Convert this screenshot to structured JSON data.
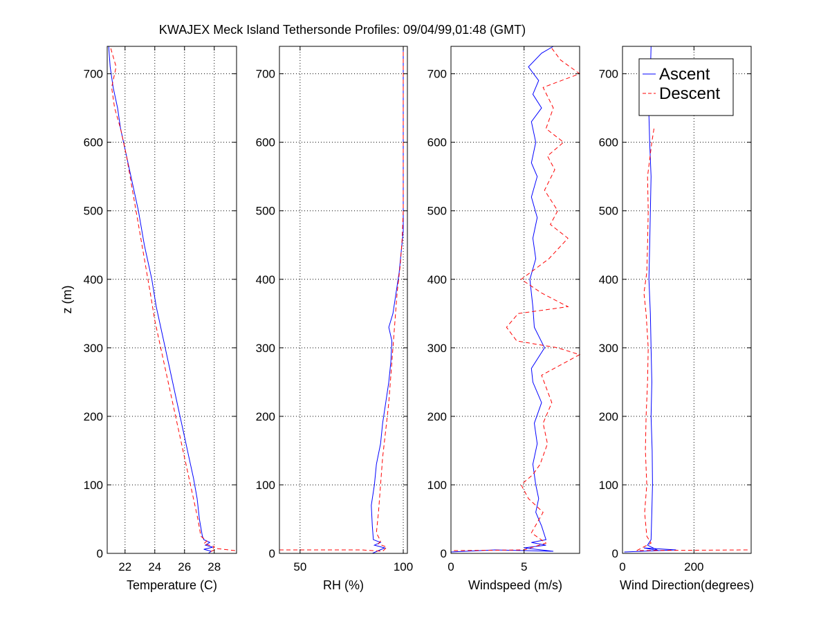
{
  "chart_data": {
    "type": "line",
    "title": "KWAJEX Meck Island Tethersonde Profiles: 09/04/99,01:48 (GMT)",
    "ylabel": "z (m)",
    "ylim": [
      0,
      740
    ],
    "yticks": [
      0,
      100,
      200,
      300,
      400,
      500,
      600,
      700
    ],
    "grid": true,
    "legend": {
      "placement": "top-right of last panel",
      "entries": [
        "Ascent",
        "Descent"
      ]
    },
    "colors": {
      "ascent": "#0000ff",
      "descent": "#ff0000"
    },
    "panels": [
      {
        "xlabel": "Temperature (C)",
        "xlim": [
          20.8,
          29.5
        ],
        "xticks": [
          22,
          24,
          26,
          28
        ],
        "series": [
          {
            "name": "Ascent",
            "style": "solid",
            "points": [
              [
                27.6,
                0
              ],
              [
                27.8,
                3
              ],
              [
                27.3,
                6
              ],
              [
                27.9,
                9
              ],
              [
                27.4,
                12
              ],
              [
                27.7,
                16
              ],
              [
                27.3,
                20
              ],
              [
                27.2,
                25
              ],
              [
                27.0,
                50
              ],
              [
                26.85,
                80
              ],
              [
                26.6,
                110
              ],
              [
                26.3,
                140
              ],
              [
                26.0,
                170
              ],
              [
                25.5,
                220
              ],
              [
                25.0,
                270
              ],
              [
                24.6,
                310
              ],
              [
                24.1,
                360
              ],
              [
                23.8,
                400
              ],
              [
                23.3,
                450
              ],
              [
                22.9,
                500
              ],
              [
                22.5,
                540
              ],
              [
                22.1,
                580
              ],
              [
                21.7,
                620
              ],
              [
                21.5,
                650
              ],
              [
                21.2,
                680
              ],
              [
                21.0,
                710
              ],
              [
                20.9,
                740
              ]
            ]
          },
          {
            "name": "Descent",
            "style": "dashed",
            "points": [
              [
                29.4,
                4
              ],
              [
                28.2,
                7
              ],
              [
                27.8,
                3
              ],
              [
                28.0,
                10
              ],
              [
                27.3,
                14
              ],
              [
                27.5,
                18
              ],
              [
                27.1,
                25
              ],
              [
                26.9,
                50
              ],
              [
                26.6,
                80
              ],
              [
                26.3,
                110
              ],
              [
                25.9,
                150
              ],
              [
                25.5,
                190
              ],
              [
                25.0,
                240
              ],
              [
                24.5,
                290
              ],
              [
                24.0,
                340
              ],
              [
                23.7,
                380
              ],
              [
                23.3,
                430
              ],
              [
                22.9,
                480
              ],
              [
                22.5,
                530
              ],
              [
                22.1,
                580
              ],
              [
                21.7,
                620
              ],
              [
                21.3,
                650
              ],
              [
                21.1,
                680
              ],
              [
                21.4,
                710
              ],
              [
                21.0,
                740
              ]
            ]
          }
        ]
      },
      {
        "xlabel": "RH (%)",
        "xlim": [
          40,
          102
        ],
        "xticks": [
          50,
          100
        ],
        "tick_labels": [
          "50",
          "100"
        ],
        "series": [
          {
            "name": "Ascent",
            "style": "solid",
            "points": [
              [
                85,
                0
              ],
              [
                88,
                4
              ],
              [
                91,
                8
              ],
              [
                86,
                12
              ],
              [
                89,
                16
              ],
              [
                85.5,
                20
              ],
              [
                85,
                40
              ],
              [
                84.5,
                70
              ],
              [
                86,
                100
              ],
              [
                87,
                130
              ],
              [
                89,
                160
              ],
              [
                90,
                190
              ],
              [
                91.5,
                220
              ],
              [
                93,
                250
              ],
              [
                94,
                280
              ],
              [
                94.5,
                310
              ],
              [
                93,
                330
              ],
              [
                95,
                350
              ],
              [
                96.5,
                380
              ],
              [
                98,
                410
              ],
              [
                99,
                440
              ],
              [
                100,
                470
              ],
              [
                100,
                740
              ]
            ]
          },
          {
            "name": "Descent",
            "style": "dashed",
            "points": [
              [
                40,
                5
              ],
              [
                80,
                5
              ],
              [
                90,
                3
              ],
              [
                92,
                9
              ],
              [
                88,
                14
              ],
              [
                89,
                18
              ],
              [
                87,
                30
              ],
              [
                88,
                60
              ],
              [
                89,
                100
              ],
              [
                90,
                140
              ],
              [
                91.5,
                180
              ],
              [
                93,
                220
              ],
              [
                94,
                260
              ],
              [
                95,
                300
              ],
              [
                96,
                340
              ],
              [
                97,
                380
              ],
              [
                98.5,
                420
              ],
              [
                99.5,
                460
              ],
              [
                100,
                500
              ],
              [
                100,
                740
              ]
            ]
          }
        ]
      },
      {
        "xlabel": "Windspeed (m/s)",
        "xlim": [
          0,
          8.8
        ],
        "xticks": [
          0,
          5
        ],
        "series": [
          {
            "name": "Ascent",
            "style": "solid",
            "points": [
              [
                0,
                2
              ],
              [
                3,
                5
              ],
              [
                7,
                3
              ],
              [
                5,
                8
              ],
              [
                6.5,
                12
              ],
              [
                5.5,
                16
              ],
              [
                6.5,
                20
              ],
              [
                6.2,
                40
              ],
              [
                5.8,
                60
              ],
              [
                6.0,
                80
              ],
              [
                5.8,
                100
              ],
              [
                5.6,
                130
              ],
              [
                5.9,
                160
              ],
              [
                5.7,
                190
              ],
              [
                6.2,
                220
              ],
              [
                5.6,
                250
              ],
              [
                5.5,
                270
              ],
              [
                6.4,
                300
              ],
              [
                5.7,
                330
              ],
              [
                5.6,
                360
              ],
              [
                5.4,
                400
              ],
              [
                5.8,
                430
              ],
              [
                5.6,
                460
              ],
              [
                5.9,
                490
              ],
              [
                5.5,
                520
              ],
              [
                5.9,
                550
              ],
              [
                5.5,
                570
              ],
              [
                5.8,
                600
              ],
              [
                5.5,
                630
              ],
              [
                6.2,
                650
              ],
              [
                5.6,
                670
              ],
              [
                6.0,
                690
              ],
              [
                5.3,
                710
              ],
              [
                6.2,
                730
              ],
              [
                7.0,
                740
              ]
            ]
          },
          {
            "name": "Descent",
            "style": "dashed",
            "points": [
              [
                0.2,
                4
              ],
              [
                5,
                5
              ],
              [
                6.5,
                15
              ],
              [
                5.5,
                30
              ],
              [
                6.3,
                60
              ],
              [
                5.3,
                80
              ],
              [
                4.8,
                100
              ],
              [
                5.6,
                115
              ],
              [
                6.1,
                130
              ],
              [
                6.6,
                160
              ],
              [
                6.3,
                190
              ],
              [
                6.9,
                220
              ],
              [
                6.2,
                260
              ],
              [
                8.8,
                290
              ],
              [
                7.3,
                300
              ],
              [
                4.5,
                310
              ],
              [
                3.8,
                330
              ],
              [
                4.6,
                350
              ],
              [
                8.0,
                360
              ],
              [
                6.2,
                380
              ],
              [
                4.8,
                400
              ],
              [
                6.7,
                430
              ],
              [
                8.0,
                460
              ],
              [
                6.8,
                480
              ],
              [
                7.3,
                500
              ],
              [
                6.4,
                530
              ],
              [
                7.1,
                560
              ],
              [
                6.6,
                580
              ],
              [
                7.7,
                600
              ],
              [
                6.5,
                620
              ],
              [
                7.0,
                650
              ],
              [
                6.3,
                680
              ],
              [
                8.8,
                700
              ],
              [
                7.5,
                720
              ],
              [
                6.8,
                740
              ]
            ]
          }
        ]
      },
      {
        "xlabel": "Wind Direction(degrees)",
        "xlim": [
          0,
          360
        ],
        "xticks": [
          0,
          200
        ],
        "series": [
          {
            "name": "Ascent",
            "style": "solid",
            "points": [
              [
                5,
                2
              ],
              [
                150,
                5
              ],
              [
                60,
                8
              ],
              [
                100,
                4
              ],
              [
                70,
                12
              ],
              [
                80,
                20
              ],
              [
                82,
                60
              ],
              [
                84,
                100
              ],
              [
                83,
                150
              ],
              [
                80,
                200
              ],
              [
                82,
                250
              ],
              [
                80,
                300
              ],
              [
                78,
                350
              ],
              [
                74,
                400
              ],
              [
                76,
                450
              ],
              [
                78,
                500
              ],
              [
                80,
                550
              ],
              [
                76,
                600
              ],
              [
                74,
                640
              ],
              [
                78,
                700
              ],
              [
                80,
                740
              ]
            ]
          },
          {
            "name": "Descent",
            "style": "dashed",
            "points": [
              [
                350,
                5
              ],
              [
                40,
                4
              ],
              [
                80,
                15
              ],
              [
                68,
                25
              ],
              [
                62,
                60
              ],
              [
                68,
                100
              ],
              [
                64,
                150
              ],
              [
                66,
                200
              ],
              [
                70,
                250
              ],
              [
                72,
                300
              ],
              [
                66,
                350
              ],
              [
                60,
                380
              ],
              [
                68,
                410
              ],
              [
                70,
                450
              ],
              [
                72,
                500
              ],
              [
                70,
                550
              ],
              [
                82,
                600
              ],
              [
                88,
                620
              ]
            ]
          }
        ]
      }
    ]
  }
}
